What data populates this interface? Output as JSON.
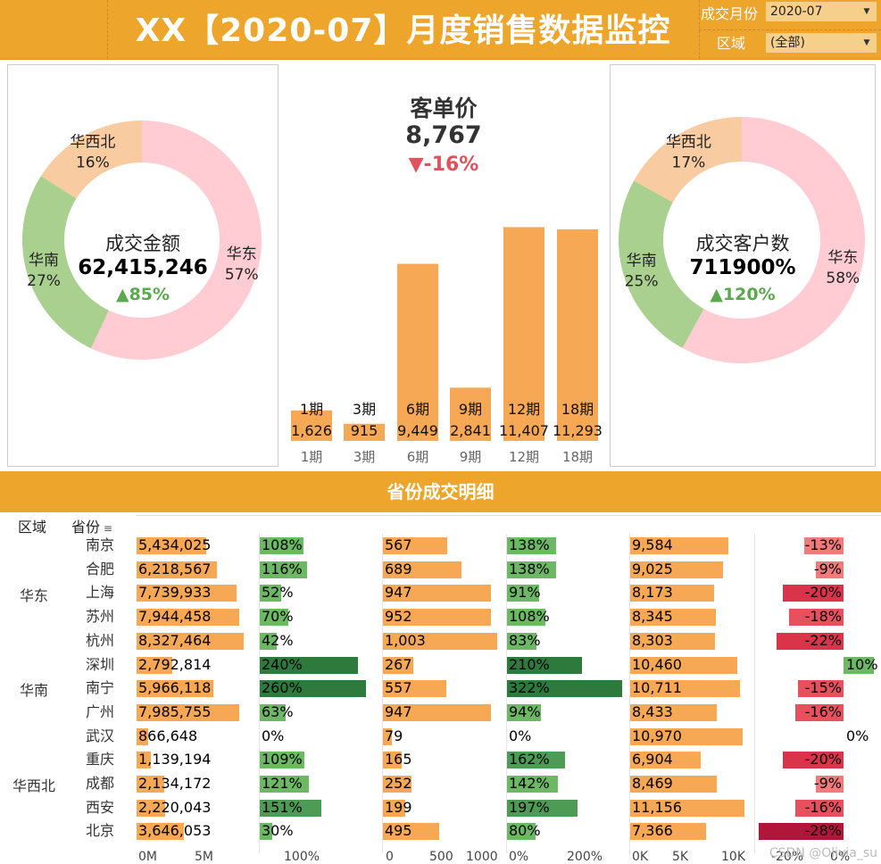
{
  "header": {
    "title": "XX【2020-07】月度销售数据监控",
    "month_label": "成交月份",
    "month_value": "2020-07",
    "region_label": "区域",
    "region_value": "(全部)"
  },
  "donut_left": {
    "center_title": "成交金额",
    "center_value": "62,415,246",
    "center_change": "▲85%",
    "slices": [
      {
        "name": "华东",
        "pct": "57%",
        "value": 57,
        "color": "#FFCCD4"
      },
      {
        "name": "华南",
        "pct": "27%",
        "value": 27,
        "color": "#A9D08E"
      },
      {
        "name": "华西北",
        "pct": "16%",
        "value": 16,
        "color": "#F8CBA0"
      }
    ]
  },
  "donut_right": {
    "center_title": "成交客户数",
    "center_value": "711900%",
    "center_change": "▲120%",
    "slices": [
      {
        "name": "华东",
        "pct": "58%",
        "value": 58,
        "color": "#FFCCD4"
      },
      {
        "name": "华南",
        "pct": "25%",
        "value": 25,
        "color": "#A9D08E"
      },
      {
        "name": "华西北",
        "pct": "17%",
        "value": 17,
        "color": "#F8CBA0"
      }
    ]
  },
  "kpi_center": {
    "title": "客单价",
    "value": "8,767",
    "change": "▼-16%"
  },
  "chart_data": {
    "type": "bar",
    "categories": [
      "1期",
      "3期",
      "6期",
      "9期",
      "12期",
      "18期"
    ],
    "values": [
      1626,
      915,
      9449,
      2841,
      11407,
      11293
    ],
    "value_labels": [
      "1,626",
      "915",
      "9,449",
      "2,841",
      "11,407",
      "11,293"
    ],
    "ylim": [
      0,
      12000
    ],
    "color": "#F7A854"
  },
  "detail": {
    "section_title": "省份成交明细",
    "col_region": "区域",
    "col_city": "省份",
    "regions": [
      {
        "name": "华东"
      },
      {
        "name": "华南"
      },
      {
        "name": "华西北"
      }
    ],
    "rows": [
      {
        "city": "南京",
        "amount": 5434025,
        "amount_label": "5,434,025",
        "amount_chg": 108,
        "amount_chg_label": "108%",
        "customers": 567,
        "customers_label": "567",
        "customers_chg": 138,
        "customers_chg_label": "138%",
        "price": 9584,
        "price_label": "9,584",
        "price_chg": -13,
        "price_chg_label": "-13%"
      },
      {
        "city": "合肥",
        "amount": 6218567,
        "amount_label": "6,218,567",
        "amount_chg": 116,
        "amount_chg_label": "116%",
        "customers": 689,
        "customers_label": "689",
        "customers_chg": 138,
        "customers_chg_label": "138%",
        "price": 9025,
        "price_label": "9,025",
        "price_chg": -9,
        "price_chg_label": "-9%"
      },
      {
        "city": "上海",
        "amount": 7739933,
        "amount_label": "7,739,933",
        "amount_chg": 52,
        "amount_chg_label": "52%",
        "customers": 947,
        "customers_label": "947",
        "customers_chg": 91,
        "customers_chg_label": "91%",
        "price": 8173,
        "price_label": "8,173",
        "price_chg": -20,
        "price_chg_label": "-20%"
      },
      {
        "city": "苏州",
        "amount": 7944458,
        "amount_label": "7,944,458",
        "amount_chg": 70,
        "amount_chg_label": "70%",
        "customers": 952,
        "customers_label": "952",
        "customers_chg": 108,
        "customers_chg_label": "108%",
        "price": 8345,
        "price_label": "8,345",
        "price_chg": -18,
        "price_chg_label": "-18%"
      },
      {
        "city": "杭州",
        "amount": 8327464,
        "amount_label": "8,327,464",
        "amount_chg": 42,
        "amount_chg_label": "42%",
        "customers": 1003,
        "customers_label": "1,003",
        "customers_chg": 83,
        "customers_chg_label": "83%",
        "price": 8303,
        "price_label": "8,303",
        "price_chg": -22,
        "price_chg_label": "-22%"
      },
      {
        "city": "深圳",
        "amount": 2792814,
        "amount_label": "2,792,814",
        "amount_chg": 240,
        "amount_chg_label": "240%",
        "customers": 267,
        "customers_label": "267",
        "customers_chg": 210,
        "customers_chg_label": "210%",
        "price": 10460,
        "price_label": "10,460",
        "price_chg": 10,
        "price_chg_label": "10%"
      },
      {
        "city": "南宁",
        "amount": 5966118,
        "amount_label": "5,966,118",
        "amount_chg": 260,
        "amount_chg_label": "260%",
        "customers": 557,
        "customers_label": "557",
        "customers_chg": 322,
        "customers_chg_label": "322%",
        "price": 10711,
        "price_label": "10,711",
        "price_chg": -15,
        "price_chg_label": "-15%"
      },
      {
        "city": "广州",
        "amount": 7985755,
        "amount_label": "7,985,755",
        "amount_chg": 63,
        "amount_chg_label": "63%",
        "customers": 947,
        "customers_label": "947",
        "customers_chg": 94,
        "customers_chg_label": "94%",
        "price": 8433,
        "price_label": "8,433",
        "price_chg": -16,
        "price_chg_label": "-16%"
      },
      {
        "city": "武汉",
        "amount": 866648,
        "amount_label": "866,648",
        "amount_chg": 0,
        "amount_chg_label": "0%",
        "customers": 79,
        "customers_label": "79",
        "customers_chg": 0,
        "customers_chg_label": "0%",
        "price": 10970,
        "price_label": "10,970",
        "price_chg": 0,
        "price_chg_label": "0%"
      },
      {
        "city": "重庆",
        "amount": 1139194,
        "amount_label": "1,139,194",
        "amount_chg": 109,
        "amount_chg_label": "109%",
        "customers": 165,
        "customers_label": "165",
        "customers_chg": 162,
        "customers_chg_label": "162%",
        "price": 6904,
        "price_label": "6,904",
        "price_chg": -20,
        "price_chg_label": "-20%"
      },
      {
        "city": "成都",
        "amount": 2134172,
        "amount_label": "2,134,172",
        "amount_chg": 121,
        "amount_chg_label": "121%",
        "customers": 252,
        "customers_label": "252",
        "customers_chg": 142,
        "customers_chg_label": "142%",
        "price": 8469,
        "price_label": "8,469",
        "price_chg": -9,
        "price_chg_label": "-9%"
      },
      {
        "city": "西安",
        "amount": 2220043,
        "amount_label": "2,220,043",
        "amount_chg": 151,
        "amount_chg_label": "151%",
        "customers": 199,
        "customers_label": "199",
        "customers_chg": 197,
        "customers_chg_label": "197%",
        "price": 11156,
        "price_label": "11,156",
        "price_chg": -16,
        "price_chg_label": "-16%"
      },
      {
        "city": "北京",
        "amount": 3646053,
        "amount_label": "3,646,053",
        "amount_chg": 30,
        "amount_chg_label": "30%",
        "customers": 495,
        "customers_label": "495",
        "customers_chg": 80,
        "customers_chg_label": "80%",
        "price": 7366,
        "price_label": "7,366",
        "price_chg": -28,
        "price_chg_label": "-28%"
      }
    ],
    "axes": {
      "amount": [
        "0M",
        "5M"
      ],
      "amount_chg": [
        "100%"
      ],
      "customers": [
        "0",
        "500",
        "1000"
      ],
      "customers_chg": [
        "0%",
        "200%"
      ],
      "price": [
        "0K",
        "5K",
        "10K"
      ],
      "price_chg": [
        "-20%",
        "0%"
      ]
    }
  },
  "watermark": "CSDN @Olivia_su"
}
